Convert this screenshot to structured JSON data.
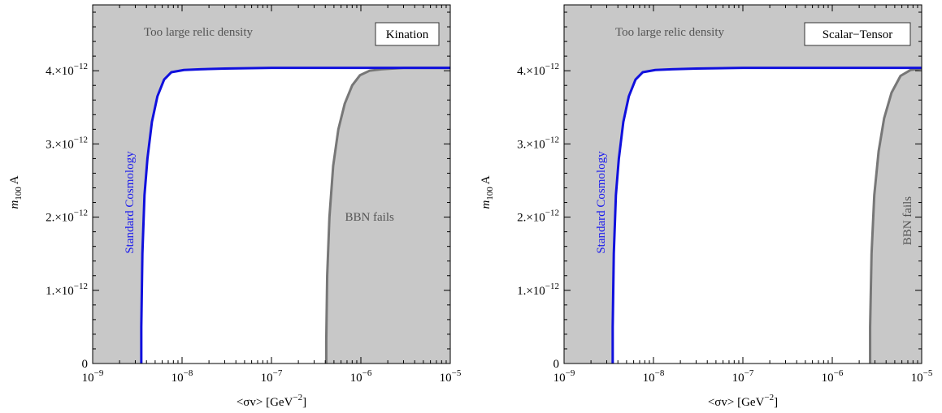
{
  "colors": {
    "excluded_fill": "#c8c8c8",
    "allowed_fill": "#ffffff",
    "standard_curve": "#1010dd",
    "bbn_curve": "#777777",
    "label_gray": "#555555",
    "label_blue": "#1a1aee"
  },
  "chart_data": [
    {
      "type": "area",
      "legend": "Kination",
      "legend_placement": "top-right",
      "xlabel": "<σv> [GeV⁻²]",
      "ylabel": "m",
      "ylabel_sub": "100",
      "ylabel_suffix": " A",
      "xscale": "log",
      "xlim": [
        1e-09,
        1e-05
      ],
      "ylim": [
        0,
        4.9e-12
      ],
      "x_ticks": [
        {
          "value": 1e-09,
          "base": "10",
          "exp": "−9"
        },
        {
          "value": 1e-08,
          "base": "10",
          "exp": "−8"
        },
        {
          "value": 1e-07,
          "base": "10",
          "exp": "−7"
        },
        {
          "value": 1e-06,
          "base": "10",
          "exp": "−6"
        },
        {
          "value": 1e-05,
          "base": "10",
          "exp": "−5"
        }
      ],
      "y_ticks": [
        {
          "value": 0,
          "mant": "0",
          "exp": ""
        },
        {
          "value": 1e-12,
          "mant": "1.×10",
          "exp": "−12"
        },
        {
          "value": 2e-12,
          "mant": "2.×10",
          "exp": "−12"
        },
        {
          "value": 3e-12,
          "mant": "3.×10",
          "exp": "−12"
        },
        {
          "value": 4e-12,
          "mant": "4.×10",
          "exp": "−12"
        }
      ],
      "region_labels": {
        "top": "Too large relic density",
        "bbn": "BBN fails",
        "standard": "Standard Cosmology"
      },
      "series": [
        {
          "name": "Standard Cosmology",
          "x": [
            3.5e-09,
            3.5e-09,
            3.6e-09,
            3.8e-09,
            4.1e-09,
            4.6e-09,
            5.3e-09,
            6.3e-09,
            7.6e-09,
            1.05e-08,
            1.6e-08,
            3e-08,
            1e-07,
            1e-06,
            1e-05
          ],
          "y": [
            0,
            5e-13,
            1.5e-12,
            2.3e-12,
            2.8e-12,
            3.3e-12,
            3.65e-12,
            3.88e-12,
            3.98e-12,
            4.01e-12,
            4.02e-12,
            4.03e-12,
            4.04e-12,
            4.04e-12,
            4.04e-12
          ]
        },
        {
          "name": "BBN fails",
          "x": [
            4.1e-07,
            4.1e-07,
            4.2e-07,
            4.45e-07,
            4.9e-07,
            5.6e-07,
            6.6e-07,
            8e-07,
            9.8e-07,
            1.25e-06,
            1.7e-06,
            3e-06,
            1e-05
          ],
          "y": [
            0,
            3e-13,
            1.2e-12,
            2e-12,
            2.7e-12,
            3.2e-12,
            3.55e-12,
            3.8e-12,
            3.94e-12,
            4e-12,
            4.02e-12,
            4.04e-12,
            4.04e-12
          ]
        }
      ]
    },
    {
      "type": "area",
      "legend": "Scalar−Tensor",
      "legend_placement": "top-right",
      "xlabel": "<σv> [GeV⁻²]",
      "ylabel": "m",
      "ylabel_sub": "100",
      "ylabel_suffix": " A",
      "xscale": "log",
      "xlim": [
        1e-09,
        1e-05
      ],
      "ylim": [
        0,
        4.9e-12
      ],
      "x_ticks": [
        {
          "value": 1e-09,
          "base": "10",
          "exp": "−9"
        },
        {
          "value": 1e-08,
          "base": "10",
          "exp": "−8"
        },
        {
          "value": 1e-07,
          "base": "10",
          "exp": "−7"
        },
        {
          "value": 1e-06,
          "base": "10",
          "exp": "−6"
        },
        {
          "value": 1e-05,
          "base": "10",
          "exp": "−5"
        }
      ],
      "y_ticks": [
        {
          "value": 0,
          "mant": "0",
          "exp": ""
        },
        {
          "value": 1e-12,
          "mant": "1.×10",
          "exp": "−12"
        },
        {
          "value": 2e-12,
          "mant": "2.×10",
          "exp": "−12"
        },
        {
          "value": 3e-12,
          "mant": "3.×10",
          "exp": "−12"
        },
        {
          "value": 4e-12,
          "mant": "4.×10",
          "exp": "−12"
        }
      ],
      "region_labels": {
        "top": "Too large relic density",
        "bbn": "BBN fails",
        "standard": "Standard Cosmology"
      },
      "series": [
        {
          "name": "Standard Cosmology",
          "x": [
            3.5e-09,
            3.5e-09,
            3.6e-09,
            3.8e-09,
            4.1e-09,
            4.6e-09,
            5.3e-09,
            6.3e-09,
            7.6e-09,
            1.05e-08,
            1.6e-08,
            3e-08,
            1e-07,
            1e-06,
            1e-05
          ],
          "y": [
            0,
            5e-13,
            1.5e-12,
            2.3e-12,
            2.8e-12,
            3.3e-12,
            3.65e-12,
            3.88e-12,
            3.98e-12,
            4.01e-12,
            4.02e-12,
            4.03e-12,
            4.04e-12,
            4.04e-12,
            4.04e-12
          ]
        },
        {
          "name": "BBN fails",
          "x": [
            2.65e-06,
            2.65e-06,
            2.75e-06,
            2.95e-06,
            3.3e-06,
            3.8e-06,
            4.6e-06,
            5.8e-06,
            7.5e-06,
            1e-05
          ],
          "y": [
            0,
            5e-13,
            1.5e-12,
            2.3e-12,
            2.9e-12,
            3.35e-12,
            3.7e-12,
            3.93e-12,
            4.01e-12,
            4.03e-12
          ]
        }
      ]
    }
  ]
}
